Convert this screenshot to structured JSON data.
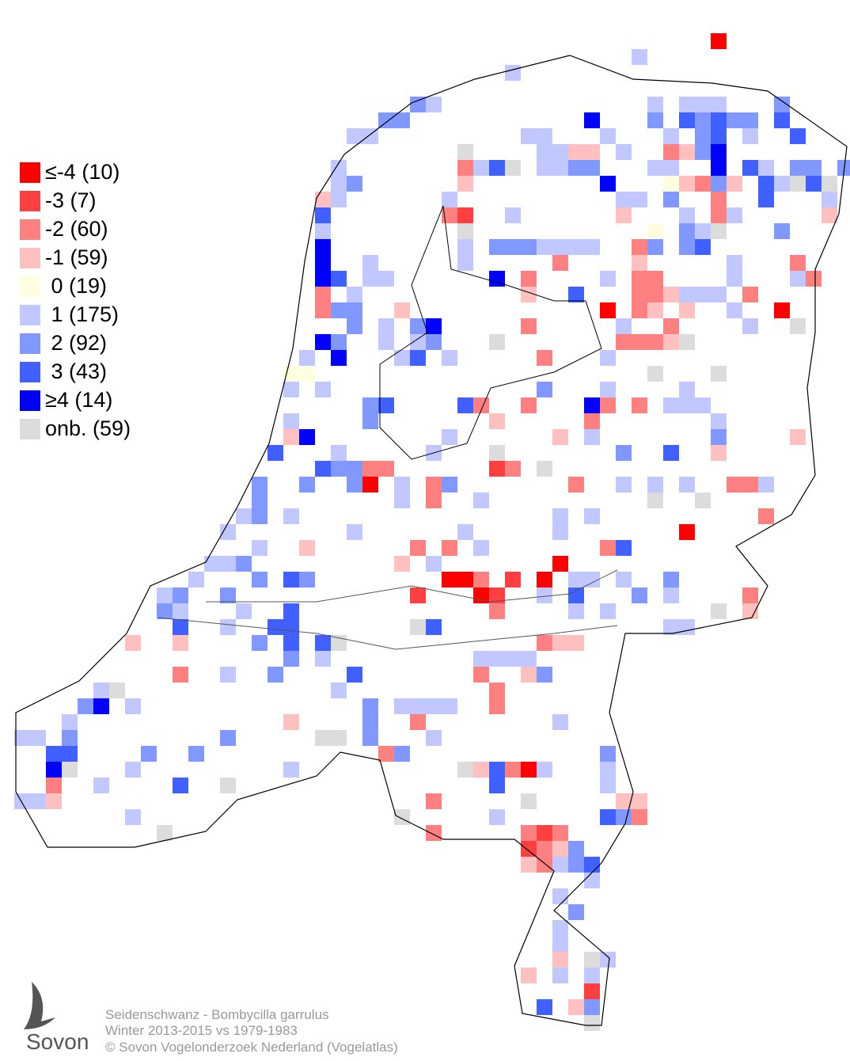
{
  "legend": [
    {
      "label": "≤-4 (10)",
      "color": "#ff0000"
    },
    {
      "label": "-3 (7)",
      "color": "#ff4040"
    },
    {
      "label": "-2 (60)",
      "color": "#ff8080"
    },
    {
      "label": "-1 (59)",
      "color": "#ffc0c0"
    },
    {
      "label": " 0 (19)",
      "color": "#ffffe0"
    },
    {
      "label": " 1 (175)",
      "color": "#c0c8ff"
    },
    {
      "label": " 2 (92)",
      "color": "#8098ff"
    },
    {
      "label": " 3 (43)",
      "color": "#4060ff"
    },
    {
      "label": "≥4 (14)",
      "color": "#0000ff"
    },
    {
      "label": "onb. (59)",
      "color": "#dcdcdc"
    }
  ],
  "cells": [
    [
      44,
      0,
      0
    ],
    [
      31,
      2,
      5
    ],
    [
      39,
      1,
      5
    ],
    [
      25,
      4,
      6
    ],
    [
      26,
      4,
      5
    ],
    [
      40,
      4,
      5
    ],
    [
      42,
      4,
      5
    ],
    [
      43,
      4,
      5
    ],
    [
      44,
      4,
      5
    ],
    [
      48,
      4,
      6
    ],
    [
      23,
      5,
      6
    ],
    [
      24,
      5,
      6
    ],
    [
      36,
      5,
      8
    ],
    [
      40,
      5,
      6
    ],
    [
      42,
      5,
      7
    ],
    [
      43,
      5,
      6
    ],
    [
      44,
      5,
      7
    ],
    [
      45,
      5,
      6
    ],
    [
      46,
      5,
      6
    ],
    [
      48,
      5,
      7
    ],
    [
      21,
      6,
      5
    ],
    [
      22,
      6,
      5
    ],
    [
      32,
      6,
      5
    ],
    [
      33,
      6,
      5
    ],
    [
      37,
      6,
      5
    ],
    [
      41,
      6,
      5
    ],
    [
      43,
      6,
      6
    ],
    [
      44,
      6,
      7
    ],
    [
      46,
      6,
      5
    ],
    [
      49,
      6,
      7
    ],
    [
      28,
      7,
      9
    ],
    [
      33,
      7,
      5
    ],
    [
      34,
      7,
      5
    ],
    [
      35,
      7,
      3
    ],
    [
      36,
      7,
      3
    ],
    [
      38,
      7,
      5
    ],
    [
      41,
      7,
      2
    ],
    [
      42,
      7,
      3
    ],
    [
      43,
      7,
      6
    ],
    [
      44,
      7,
      8
    ],
    [
      20,
      8,
      5
    ],
    [
      28,
      8,
      2
    ],
    [
      29,
      8,
      5
    ],
    [
      30,
      8,
      7
    ],
    [
      31,
      8,
      9
    ],
    [
      33,
      8,
      5
    ],
    [
      34,
      8,
      5
    ],
    [
      35,
      8,
      6
    ],
    [
      36,
      8,
      6
    ],
    [
      40,
      8,
      5
    ],
    [
      41,
      8,
      5
    ],
    [
      44,
      8,
      8
    ],
    [
      46,
      8,
      7
    ],
    [
      47,
      8,
      5
    ],
    [
      49,
      8,
      6
    ],
    [
      50,
      8,
      6
    ],
    [
      52,
      8,
      6
    ],
    [
      20,
      9,
      5
    ],
    [
      21,
      9,
      6
    ],
    [
      28,
      9,
      3
    ],
    [
      37,
      9,
      8
    ],
    [
      41,
      9,
      4
    ],
    [
      42,
      9,
      3
    ],
    [
      43,
      9,
      2
    ],
    [
      44,
      9,
      6
    ],
    [
      45,
      9,
      3
    ],
    [
      47,
      9,
      7
    ],
    [
      48,
      9,
      5
    ],
    [
      49,
      9,
      9
    ],
    [
      50,
      9,
      7
    ],
    [
      51,
      9,
      9
    ],
    [
      19,
      10,
      3
    ],
    [
      20,
      10,
      5
    ],
    [
      27,
      10,
      5
    ],
    [
      38,
      10,
      5
    ],
    [
      39,
      10,
      5
    ],
    [
      41,
      10,
      6
    ],
    [
      44,
      10,
      2
    ],
    [
      47,
      10,
      7
    ],
    [
      51,
      10,
      5
    ],
    [
      19,
      11,
      7
    ],
    [
      27,
      11,
      2
    ],
    [
      28,
      11,
      1
    ],
    [
      31,
      11,
      5
    ],
    [
      38,
      11,
      3
    ],
    [
      42,
      11,
      5
    ],
    [
      44,
      11,
      2
    ],
    [
      45,
      11,
      5
    ],
    [
      51,
      11,
      3
    ],
    [
      19,
      12,
      5
    ],
    [
      28,
      12,
      9
    ],
    [
      40,
      12,
      4
    ],
    [
      42,
      12,
      6
    ],
    [
      43,
      12,
      5
    ],
    [
      44,
      12,
      9
    ],
    [
      48,
      12,
      6
    ],
    [
      19,
      13,
      8
    ],
    [
      28,
      13,
      5
    ],
    [
      30,
      13,
      6
    ],
    [
      31,
      13,
      6
    ],
    [
      32,
      13,
      6
    ],
    [
      33,
      13,
      5
    ],
    [
      34,
      13,
      5
    ],
    [
      35,
      13,
      5
    ],
    [
      36,
      13,
      5
    ],
    [
      39,
      13,
      2
    ],
    [
      40,
      13,
      6
    ],
    [
      42,
      13,
      6
    ],
    [
      43,
      13,
      7
    ],
    [
      19,
      14,
      8
    ],
    [
      22,
      14,
      5
    ],
    [
      28,
      14,
      5
    ],
    [
      34,
      14,
      2
    ],
    [
      39,
      14,
      3
    ],
    [
      45,
      14,
      5
    ],
    [
      49,
      14,
      2
    ],
    [
      19,
      15,
      8
    ],
    [
      20,
      15,
      7
    ],
    [
      22,
      15,
      5
    ],
    [
      23,
      15,
      5
    ],
    [
      30,
      15,
      8
    ],
    [
      32,
      15,
      2
    ],
    [
      37,
      15,
      5
    ],
    [
      39,
      15,
      2
    ],
    [
      40,
      15,
      2
    ],
    [
      45,
      15,
      5
    ],
    [
      49,
      15,
      5
    ],
    [
      50,
      15,
      2
    ],
    [
      19,
      16,
      2
    ],
    [
      21,
      16,
      5
    ],
    [
      32,
      16,
      3
    ],
    [
      35,
      16,
      7
    ],
    [
      39,
      16,
      2
    ],
    [
      40,
      16,
      2
    ],
    [
      41,
      16,
      3
    ],
    [
      42,
      16,
      5
    ],
    [
      43,
      16,
      5
    ],
    [
      44,
      16,
      5
    ],
    [
      46,
      16,
      2
    ],
    [
      19,
      17,
      2
    ],
    [
      20,
      17,
      6
    ],
    [
      21,
      17,
      6
    ],
    [
      24,
      17,
      3
    ],
    [
      37,
      17,
      0
    ],
    [
      39,
      17,
      2
    ],
    [
      40,
      17,
      3
    ],
    [
      42,
      17,
      3
    ],
    [
      45,
      17,
      5
    ],
    [
      48,
      17,
      0
    ],
    [
      21,
      18,
      6
    ],
    [
      23,
      18,
      5
    ],
    [
      25,
      18,
      6
    ],
    [
      26,
      18,
      8
    ],
    [
      32,
      18,
      2
    ],
    [
      38,
      18,
      5
    ],
    [
      41,
      18,
      2
    ],
    [
      46,
      18,
      5
    ],
    [
      49,
      18,
      9
    ],
    [
      19,
      19,
      8
    ],
    [
      20,
      19,
      6
    ],
    [
      23,
      19,
      5
    ],
    [
      25,
      19,
      5
    ],
    [
      26,
      19,
      6
    ],
    [
      30,
      19,
      9
    ],
    [
      38,
      19,
      2
    ],
    [
      39,
      19,
      2
    ],
    [
      40,
      19,
      2
    ],
    [
      41,
      19,
      3
    ],
    [
      42,
      19,
      9
    ],
    [
      18,
      20,
      5
    ],
    [
      20,
      20,
      8
    ],
    [
      24,
      20,
      5
    ],
    [
      25,
      20,
      7
    ],
    [
      27,
      20,
      5
    ],
    [
      33,
      20,
      2
    ],
    [
      37,
      20,
      5
    ],
    [
      17,
      21,
      4
    ],
    [
      18,
      21,
      4
    ],
    [
      40,
      21,
      9
    ],
    [
      44,
      21,
      9
    ],
    [
      17,
      22,
      5
    ],
    [
      19,
      22,
      5
    ],
    [
      33,
      22,
      6
    ],
    [
      37,
      22,
      5
    ],
    [
      42,
      22,
      5
    ],
    [
      22,
      23,
      6
    ],
    [
      23,
      23,
      7
    ],
    [
      28,
      23,
      7
    ],
    [
      29,
      23,
      2
    ],
    [
      32,
      23,
      2
    ],
    [
      36,
      23,
      8
    ],
    [
      37,
      23,
      2
    ],
    [
      39,
      23,
      2
    ],
    [
      41,
      23,
      5
    ],
    [
      42,
      23,
      5
    ],
    [
      43,
      23,
      5
    ],
    [
      17,
      24,
      5
    ],
    [
      22,
      24,
      6
    ],
    [
      30,
      24,
      3
    ],
    [
      36,
      24,
      2
    ],
    [
      44,
      24,
      5
    ],
    [
      17,
      25,
      3
    ],
    [
      18,
      25,
      8
    ],
    [
      27,
      25,
      5
    ],
    [
      34,
      25,
      3
    ],
    [
      36,
      25,
      5
    ],
    [
      44,
      25,
      6
    ],
    [
      49,
      25,
      3
    ],
    [
      16,
      26,
      7
    ],
    [
      20,
      26,
      5
    ],
    [
      26,
      26,
      5
    ],
    [
      38,
      26,
      6
    ],
    [
      41,
      26,
      7
    ],
    [
      44,
      26,
      3
    ],
    [
      30,
      26,
      9
    ],
    [
      19,
      27,
      7
    ],
    [
      20,
      27,
      6
    ],
    [
      21,
      27,
      6
    ],
    [
      22,
      27,
      2
    ],
    [
      23,
      27,
      2
    ],
    [
      30,
      27,
      1
    ],
    [
      31,
      27,
      2
    ],
    [
      33,
      27,
      9
    ],
    [
      15,
      28,
      6
    ],
    [
      18,
      28,
      6
    ],
    [
      21,
      28,
      6
    ],
    [
      22,
      28,
      0
    ],
    [
      24,
      28,
      5
    ],
    [
      26,
      28,
      2
    ],
    [
      27,
      28,
      6
    ],
    [
      35,
      28,
      2
    ],
    [
      38,
      28,
      5
    ],
    [
      40,
      28,
      5
    ],
    [
      42,
      28,
      5
    ],
    [
      45,
      28,
      2
    ],
    [
      46,
      28,
      2
    ],
    [
      47,
      28,
      5
    ],
    [
      15,
      29,
      6
    ],
    [
      24,
      29,
      5
    ],
    [
      26,
      29,
      2
    ],
    [
      29,
      29,
      5
    ],
    [
      40,
      29,
      9
    ],
    [
      43,
      29,
      9
    ],
    [
      14,
      30,
      5
    ],
    [
      15,
      30,
      6
    ],
    [
      17,
      30,
      5
    ],
    [
      34,
      30,
      5
    ],
    [
      36,
      30,
      5
    ],
    [
      47,
      30,
      2
    ],
    [
      13,
      31,
      5
    ],
    [
      21,
      31,
      5
    ],
    [
      28,
      31,
      5
    ],
    [
      34,
      31,
      5
    ],
    [
      42,
      31,
      0
    ],
    [
      15,
      32,
      5
    ],
    [
      18,
      32,
      3
    ],
    [
      25,
      32,
      2
    ],
    [
      27,
      32,
      2
    ],
    [
      29,
      32,
      5
    ],
    [
      37,
      32,
      2
    ],
    [
      38,
      32,
      7
    ],
    [
      12,
      33,
      5
    ],
    [
      13,
      33,
      5
    ],
    [
      14,
      33,
      6
    ],
    [
      24,
      33,
      3
    ],
    [
      26,
      33,
      5
    ],
    [
      34,
      33,
      0
    ],
    [
      11,
      34,
      5
    ],
    [
      15,
      34,
      6
    ],
    [
      17,
      34,
      7
    ],
    [
      18,
      34,
      6
    ],
    [
      27,
      34,
      0
    ],
    [
      28,
      34,
      0
    ],
    [
      29,
      34,
      2
    ],
    [
      31,
      34,
      1
    ],
    [
      33,
      34,
      0
    ],
    [
      35,
      34,
      5
    ],
    [
      36,
      34,
      5
    ],
    [
      38,
      34,
      5
    ],
    [
      41,
      34,
      6
    ],
    [
      9,
      35,
      5
    ],
    [
      10,
      35,
      6
    ],
    [
      13,
      35,
      6
    ],
    [
      25,
      35,
      1
    ],
    [
      29,
      35,
      0
    ],
    [
      30,
      35,
      1
    ],
    [
      33,
      35,
      5
    ],
    [
      35,
      35,
      7
    ],
    [
      39,
      35,
      6
    ],
    [
      41,
      35,
      5
    ],
    [
      46,
      35,
      2
    ],
    [
      9,
      36,
      6
    ],
    [
      10,
      36,
      5
    ],
    [
      14,
      36,
      5
    ],
    [
      17,
      36,
      7
    ],
    [
      30,
      36,
      2
    ],
    [
      35,
      36,
      5
    ],
    [
      37,
      36,
      5
    ],
    [
      44,
      36,
      9
    ],
    [
      46,
      36,
      3
    ],
    [
      10,
      37,
      7
    ],
    [
      13,
      37,
      5
    ],
    [
      16,
      37,
      7
    ],
    [
      17,
      37,
      7
    ],
    [
      25,
      37,
      9
    ],
    [
      26,
      37,
      7
    ],
    [
      41,
      37,
      5
    ],
    [
      42,
      37,
      5
    ],
    [
      7,
      38,
      3
    ],
    [
      10,
      38,
      3
    ],
    [
      15,
      38,
      6
    ],
    [
      17,
      38,
      7
    ],
    [
      19,
      38,
      7
    ],
    [
      20,
      38,
      9
    ],
    [
      33,
      38,
      2
    ],
    [
      34,
      38,
      3
    ],
    [
      35,
      38,
      3
    ],
    [
      17,
      39,
      6
    ],
    [
      19,
      39,
      5
    ],
    [
      29,
      39,
      5
    ],
    [
      30,
      39,
      5
    ],
    [
      31,
      39,
      5
    ],
    [
      32,
      39,
      5
    ],
    [
      10,
      40,
      2
    ],
    [
      13,
      40,
      5
    ],
    [
      16,
      40,
      6
    ],
    [
      21,
      40,
      7
    ],
    [
      29,
      40,
      2
    ],
    [
      32,
      40,
      3
    ],
    [
      33,
      40,
      6
    ],
    [
      5,
      41,
      5
    ],
    [
      6,
      41,
      9
    ],
    [
      20,
      41,
      5
    ],
    [
      30,
      41,
      2
    ],
    [
      4,
      42,
      6
    ],
    [
      5,
      42,
      8
    ],
    [
      7,
      42,
      5
    ],
    [
      22,
      42,
      6
    ],
    [
      24,
      42,
      5
    ],
    [
      25,
      42,
      5
    ],
    [
      26,
      42,
      5
    ],
    [
      27,
      42,
      5
    ],
    [
      30,
      42,
      2
    ],
    [
      3,
      43,
      5
    ],
    [
      17,
      43,
      3
    ],
    [
      22,
      43,
      6
    ],
    [
      25,
      43,
      2
    ],
    [
      34,
      43,
      5
    ],
    [
      0,
      44,
      5
    ],
    [
      1,
      44,
      5
    ],
    [
      3,
      44,
      6
    ],
    [
      13,
      44,
      6
    ],
    [
      19,
      44,
      9
    ],
    [
      20,
      44,
      9
    ],
    [
      22,
      44,
      6
    ],
    [
      26,
      44,
      5
    ],
    [
      2,
      45,
      7
    ],
    [
      3,
      45,
      7
    ],
    [
      8,
      45,
      6
    ],
    [
      11,
      45,
      6
    ],
    [
      23,
      45,
      2
    ],
    [
      24,
      45,
      6
    ],
    [
      37,
      45,
      6
    ],
    [
      2,
      46,
      8
    ],
    [
      3,
      46,
      9
    ],
    [
      7,
      46,
      5
    ],
    [
      17,
      46,
      5
    ],
    [
      28,
      46,
      9
    ],
    [
      29,
      46,
      3
    ],
    [
      30,
      46,
      7
    ],
    [
      31,
      46,
      2
    ],
    [
      32,
      46,
      0
    ],
    [
      33,
      46,
      5
    ],
    [
      37,
      46,
      5
    ],
    [
      2,
      47,
      2
    ],
    [
      5,
      47,
      5
    ],
    [
      10,
      47,
      7
    ],
    [
      13,
      47,
      9
    ],
    [
      30,
      47,
      7
    ],
    [
      37,
      47,
      5
    ],
    [
      0,
      48,
      5
    ],
    [
      1,
      48,
      5
    ],
    [
      2,
      48,
      3
    ],
    [
      26,
      48,
      2
    ],
    [
      32,
      48,
      9
    ],
    [
      38,
      48,
      3
    ],
    [
      39,
      48,
      3
    ],
    [
      7,
      49,
      5
    ],
    [
      24,
      49,
      9
    ],
    [
      30,
      49,
      5
    ],
    [
      37,
      49,
      7
    ],
    [
      38,
      49,
      6
    ],
    [
      39,
      49,
      2
    ],
    [
      9,
      50,
      9
    ],
    [
      26,
      50,
      2
    ],
    [
      32,
      50,
      2
    ],
    [
      33,
      50,
      1
    ],
    [
      34,
      50,
      2
    ],
    [
      32,
      51,
      1
    ],
    [
      33,
      51,
      2
    ],
    [
      34,
      51,
      3
    ],
    [
      35,
      51,
      6
    ],
    [
      32,
      52,
      3
    ],
    [
      33,
      52,
      2
    ],
    [
      34,
      52,
      5
    ],
    [
      35,
      52,
      6
    ],
    [
      36,
      52,
      7
    ],
    [
      36,
      53,
      5
    ],
    [
      34,
      54,
      5
    ],
    [
      35,
      55,
      6
    ],
    [
      34,
      56,
      5
    ],
    [
      34,
      57,
      5
    ],
    [
      34,
      58,
      3
    ],
    [
      36,
      58,
      9
    ],
    [
      37,
      58,
      5
    ],
    [
      32,
      59,
      3
    ],
    [
      34,
      59,
      5
    ],
    [
      36,
      59,
      5
    ],
    [
      36,
      60,
      1
    ],
    [
      33,
      61,
      7
    ],
    [
      35,
      61,
      3
    ],
    [
      36,
      61,
      6
    ],
    [
      36,
      62,
      9
    ]
  ],
  "caption": [
    "Seidenschwanz - Bombycilla garrulus",
    "Winter 2013-2015 vs 1979-1983",
    "© Sovon Vogelonderzoek Nederland (Vogelatlas)"
  ],
  "logo": "Sovon"
}
